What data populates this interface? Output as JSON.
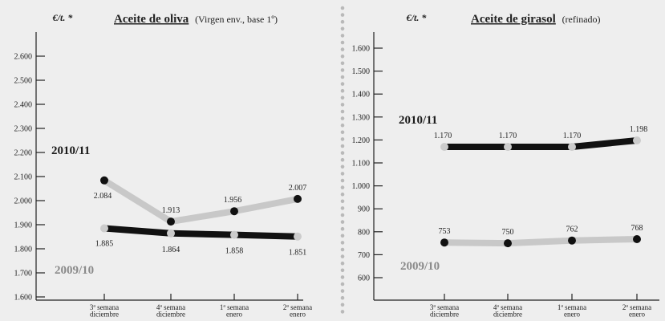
{
  "chart_data": [
    {
      "type": "line",
      "unit": "€/t. *",
      "title": "Aceite de oliva",
      "subtitle": "(Virgen env., base 1º)",
      "categories": [
        [
          "3ª semana",
          "diciembre"
        ],
        [
          "4ª semana",
          "diciembre"
        ],
        [
          "1ª semana",
          "enero"
        ],
        [
          "2ª semana",
          "enero"
        ]
      ],
      "yticks": [
        "1.600",
        "1.700",
        "1.800",
        "1.900",
        "2.000",
        "2.100",
        "2.200",
        "2.300",
        "2.400",
        "2.500",
        "2.600"
      ],
      "ylim": [
        1600,
        2600
      ],
      "grid": false,
      "series": [
        {
          "name": "2010/11",
          "values": [
            2084,
            1913,
            1956,
            2007
          ],
          "labels": [
            "2.084",
            "1.913",
            "1.956",
            "2.007"
          ],
          "line_color": "#c8c8c8",
          "marker_color": "#111111",
          "label_color": "#1a1a1a"
        },
        {
          "name": "2009/10",
          "values": [
            1885,
            1864,
            1858,
            1851
          ],
          "labels": [
            "1.885",
            "1.864",
            "1.858",
            "1.851"
          ],
          "line_color": "#111111",
          "marker_color": "#cccccc",
          "label_color": "#8a8a8a"
        }
      ]
    },
    {
      "type": "line",
      "unit": "€/t. *",
      "title": "Aceite de girasol",
      "subtitle": "(refinado)",
      "categories": [
        [
          "3ª semana",
          "diciembre"
        ],
        [
          "4ª semana",
          "diciembre"
        ],
        [
          "1ª semana",
          "enero"
        ],
        [
          "2ª semana",
          "enero"
        ]
      ],
      "yticks": [
        "600",
        "700",
        "800",
        "900",
        "1.000",
        "1.100",
        "1.200",
        "1.300",
        "1.400",
        "1.500",
        "1.600"
      ],
      "ylim": [
        600,
        1600
      ],
      "grid": false,
      "series": [
        {
          "name": "2010/11",
          "values": [
            1170,
            1170,
            1170,
            1198
          ],
          "labels": [
            "1.170",
            "1.170",
            "1.170",
            "1.198"
          ],
          "line_color": "#111111",
          "marker_color": "#cccccc",
          "label_color": "#1a1a1a"
        },
        {
          "name": "2009/10",
          "values": [
            753,
            750,
            762,
            768
          ],
          "labels": [
            "753",
            "750",
            "762",
            "768"
          ],
          "line_color": "#c8c8c8",
          "marker_color": "#111111",
          "label_color": "#8a8a8a"
        }
      ]
    }
  ]
}
